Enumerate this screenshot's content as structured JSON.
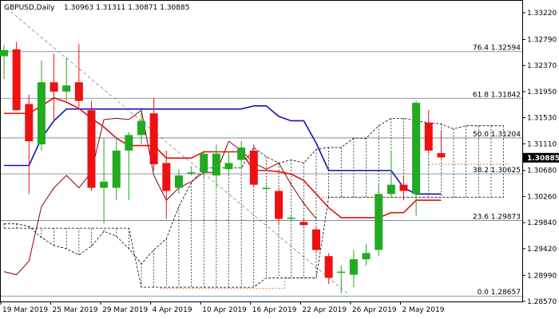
{
  "header": {
    "symbol": "GBPUSD,Daily",
    "ohlc": "1.30963 1.31311 1.30871 1.30885"
  },
  "current_price": "1.30885",
  "chart_data": {
    "type": "candlestick",
    "ylim": [
      1.2857,
      1.3327
    ],
    "y_ticks": [
      {
        "value": 1.3322,
        "label": "1.33220"
      },
      {
        "value": 1.3279,
        "label": "1.32790"
      },
      {
        "value": 1.3237,
        "label": "1.32370"
      },
      {
        "value": 1.3195,
        "label": "1.31950"
      },
      {
        "value": 1.3153,
        "label": "1.31530"
      },
      {
        "value": 1.3111,
        "label": "1.31110"
      },
      {
        "value": 1.3068,
        "label": "1.30680"
      },
      {
        "value": 1.3026,
        "label": "1.30260"
      },
      {
        "value": 1.2984,
        "label": "1.29840"
      },
      {
        "value": 1.2942,
        "label": "1.29420"
      },
      {
        "value": 1.2899,
        "label": "1.28990"
      },
      {
        "value": 1.2857,
        "label": "1.28570"
      }
    ],
    "x_labels": [
      {
        "index": 0,
        "label": "19 Mar 2019"
      },
      {
        "index": 4,
        "label": "25 Mar 2019"
      },
      {
        "index": 8,
        "label": "29 Mar 2019"
      },
      {
        "index": 12,
        "label": "4 Apr 2019"
      },
      {
        "index": 16,
        "label": "10 Apr 2019"
      },
      {
        "index": 20,
        "label": "16 Apr 2019"
      },
      {
        "index": 24,
        "label": "22 Apr 2019"
      },
      {
        "index": 28,
        "label": "26 Apr 2019"
      },
      {
        "index": 32,
        "label": "2 May 2019"
      }
    ],
    "fib_levels": [
      {
        "label": "76.4 1.32594",
        "value": 1.32594
      },
      {
        "label": "61.8 1.31842",
        "value": 1.31842
      },
      {
        "label": "50.0 1.31204",
        "value": 1.31204
      },
      {
        "label": "38.2 1.30625",
        "value": 1.30625
      },
      {
        "label": "23.6 1.29873",
        "value": 1.29873
      },
      {
        "label": "0.0 1.28657",
        "value": 1.28657
      }
    ],
    "candles": [
      {
        "o": 1.3252,
        "h": 1.327,
        "l": 1.3215,
        "c": 1.3262
      },
      {
        "o": 1.3263,
        "h": 1.3275,
        "l": 1.3165,
        "c": 1.3165
      },
      {
        "o": 1.3175,
        "h": 1.319,
        "l": 1.303,
        "c": 1.3115
      },
      {
        "o": 1.311,
        "h": 1.3245,
        "l": 1.31,
        "c": 1.321
      },
      {
        "o": 1.321,
        "h": 1.3256,
        "l": 1.315,
        "c": 1.3195
      },
      {
        "o": 1.3195,
        "h": 1.325,
        "l": 1.318,
        "c": 1.3205
      },
      {
        "o": 1.321,
        "h": 1.3272,
        "l": 1.317,
        "c": 1.318
      },
      {
        "o": 1.3165,
        "h": 1.318,
        "l": 1.3035,
        "c": 1.304
      },
      {
        "o": 1.304,
        "h": 1.312,
        "l": 1.2983,
        "c": 1.305
      },
      {
        "o": 1.304,
        "h": 1.312,
        "l": 1.302,
        "c": 1.31
      },
      {
        "o": 1.31,
        "h": 1.313,
        "l": 1.302,
        "c": 1.3125
      },
      {
        "o": 1.3125,
        "h": 1.3165,
        "l": 1.311,
        "c": 1.3148
      },
      {
        "o": 1.316,
        "h": 1.3185,
        "l": 1.3068,
        "c": 1.3078
      },
      {
        "o": 1.308,
        "h": 1.31,
        "l": 1.299,
        "c": 1.3035
      },
      {
        "o": 1.304,
        "h": 1.307,
        "l": 1.303,
        "c": 1.306
      },
      {
        "o": 1.3065,
        "h": 1.3075,
        "l": 1.306,
        "c": 1.3065
      },
      {
        "o": 1.3065,
        "h": 1.31,
        "l": 1.3055,
        "c": 1.3095
      },
      {
        "o": 1.306,
        "h": 1.311,
        "l": 1.304,
        "c": 1.3095
      },
      {
        "o": 1.307,
        "h": 1.3098,
        "l": 1.306,
        "c": 1.308
      },
      {
        "o": 1.3085,
        "h": 1.3115,
        "l": 1.307,
        "c": 1.3105
      },
      {
        "o": 1.31,
        "h": 1.311,
        "l": 1.304,
        "c": 1.3045
      },
      {
        "o": 1.304,
        "h": 1.3045,
        "l": 1.3035,
        "c": 1.304
      },
      {
        "o": 1.3035,
        "h": 1.304,
        "l": 1.298,
        "c": 1.299
      },
      {
        "o": 1.299,
        "h": 1.2995,
        "l": 1.2985,
        "c": 1.2992
      },
      {
        "o": 1.2985,
        "h": 1.299,
        "l": 1.2978,
        "c": 1.298
      },
      {
        "o": 1.2973,
        "h": 1.2978,
        "l": 1.2935,
        "c": 1.294
      },
      {
        "o": 1.293,
        "h": 1.2935,
        "l": 1.2885,
        "c": 1.2895
      },
      {
        "o": 1.2905,
        "h": 1.2915,
        "l": 1.287,
        "c": 1.2905
      },
      {
        "o": 1.29,
        "h": 1.294,
        "l": 1.288,
        "c": 1.2925
      },
      {
        "o": 1.2925,
        "h": 1.295,
        "l": 1.2915,
        "c": 1.2935
      },
      {
        "o": 1.294,
        "h": 1.3045,
        "l": 1.293,
        "c": 1.303
      },
      {
        "o": 1.303,
        "h": 1.31,
        "l": 1.3025,
        "c": 1.3045
      },
      {
        "o": 1.3045,
        "h": 1.306,
        "l": 1.302,
        "c": 1.3035
      },
      {
        "o": 1.303,
        "h": 1.318,
        "l": 1.2995,
        "c": 1.3177
      },
      {
        "o": 1.3145,
        "h": 1.3165,
        "l": 1.3095,
        "c": 1.31
      },
      {
        "o": 1.3096,
        "h": 1.3131,
        "l": 1.3087,
        "c": 1.3089
      }
    ],
    "ichimoku": {
      "tenkan_sen": [
        1.316,
        1.316,
        1.316,
        1.3172,
        1.3185,
        1.3178,
        1.3168,
        1.3152,
        1.3138,
        1.312,
        1.3108,
        1.3108,
        1.3108,
        1.3088,
        1.3088,
        1.3088,
        1.3098,
        1.3098,
        1.3098,
        1.3098,
        1.3068,
        1.3068,
        1.3066,
        1.3062,
        1.3052,
        1.303,
        1.3008,
        1.2992,
        1.2992,
        1.2992,
        1.2992,
        1.3,
        1.3,
        1.302,
        1.302,
        1.302
      ],
      "kijun_sen": [
        1.3076,
        1.3076,
        1.3076,
        1.312,
        1.3148,
        1.3167,
        1.3167,
        1.3167,
        1.3167,
        1.3167,
        1.3167,
        1.3167,
        1.3167,
        1.3167,
        1.3167,
        1.3167,
        1.3167,
        1.3167,
        1.3167,
        1.3167,
        1.3172,
        1.3172,
        1.3155,
        1.3148,
        1.3148,
        1.3112,
        1.3068,
        1.3068,
        1.3068,
        1.3068,
        1.3068,
        1.3068,
        1.304,
        1.303,
        1.303,
        1.303
      ],
      "chikou_span": [
        1.2905,
        1.29,
        1.2922,
        1.301,
        1.304,
        1.306,
        1.304,
        1.3065,
        1.315,
        1.3152,
        1.315,
        1.3165,
        1.306,
        1.302,
        1.304,
        1.305,
        1.3065,
        1.3065,
        1.3115,
        1.31,
        1.308,
        1.307,
        1.308,
        1.3045,
        1.3015,
        1.299
      ],
      "senkou_span_a": [
        1.2982,
        1.2982,
        1.2978,
        1.296,
        1.2947,
        1.2942,
        1.2932,
        1.2946,
        1.297,
        1.2962,
        1.2942,
        1.2918,
        1.294,
        1.2958,
        1.301,
        1.3048,
        1.3072,
        1.3072,
        1.3072,
        1.3072,
        1.3105,
        1.309,
        1.308,
        1.3085,
        1.308,
        1.3102,
        1.3105,
        1.3105,
        1.312,
        1.312,
        1.314,
        1.3152,
        1.3152,
        1.3148,
        1.3145,
        1.3143,
        1.3135,
        1.314,
        1.314,
        1.314,
        1.314
      ],
      "senkou_span_b": [
        1.2975,
        1.2975,
        1.2975,
        1.2975,
        1.2975,
        1.2975,
        1.2975,
        1.2975,
        1.2975,
        1.2975,
        1.2975,
        1.288,
        1.288,
        1.288,
        1.288,
        1.288,
        1.288,
        1.288,
        1.288,
        1.288,
        1.288,
        1.2895,
        1.2895,
        1.2895,
        1.2895,
        1.2895,
        1.3025,
        1.3025,
        1.3025,
        1.3025,
        1.3025,
        1.3025,
        1.3025,
        1.3025,
        1.3025,
        1.3025,
        1.3025,
        1.3025,
        1.3025,
        1.3025,
        1.3025
      ]
    },
    "colors": {
      "bull": "#22aa22",
      "bear": "#ee1111",
      "tenkan": "#dd1111",
      "kijun": "#1111bb",
      "chikou": "#8b0000",
      "cloud": "#000000",
      "fib": "#6b7b8c",
      "trend": "#778899",
      "fib_base": "#d2691e",
      "price_box": "#000000"
    }
  }
}
